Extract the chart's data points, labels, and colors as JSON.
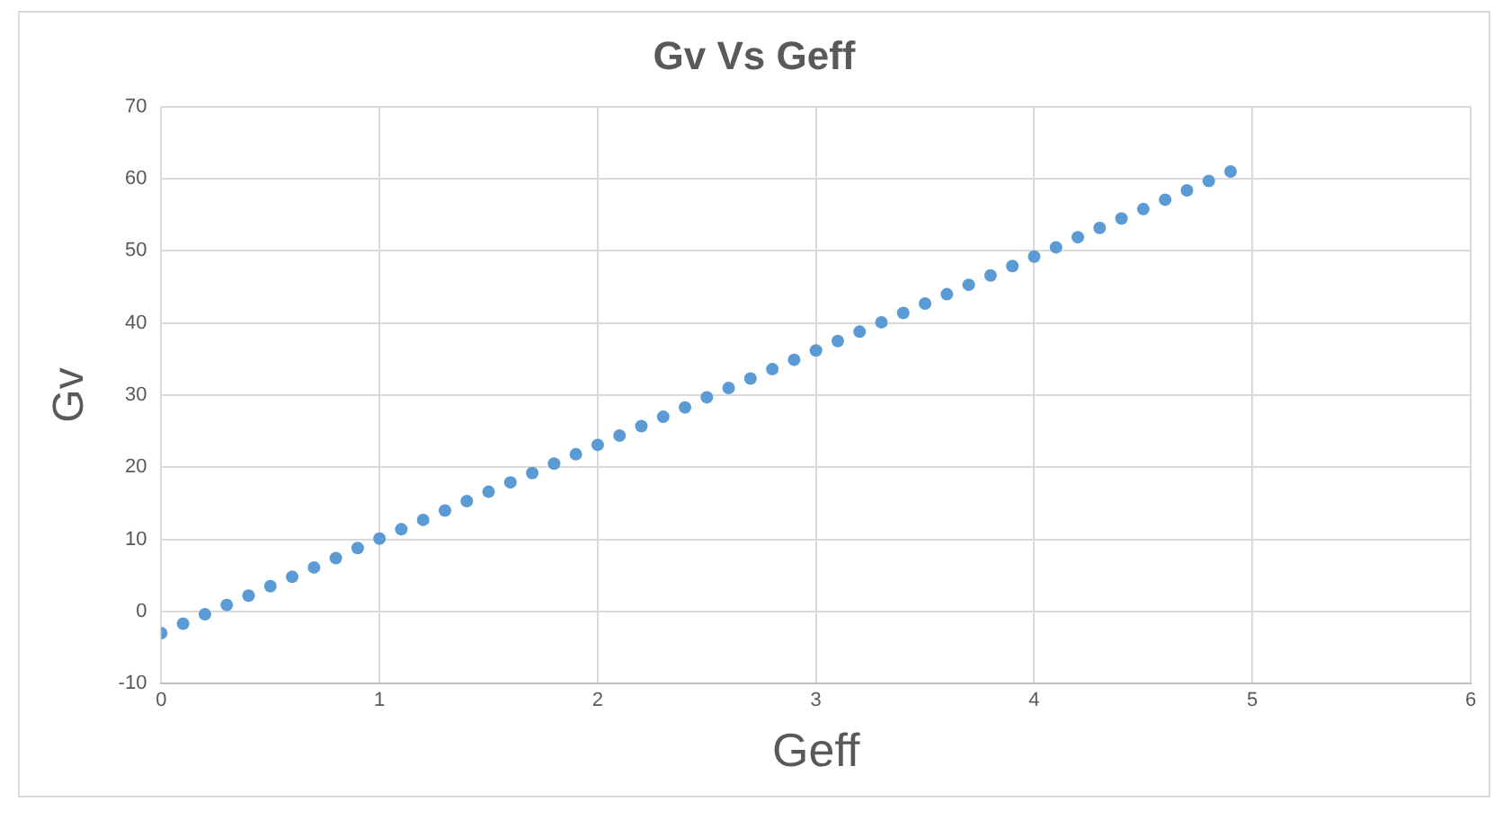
{
  "chart_data": {
    "type": "scatter",
    "title": "Gv Vs Geff",
    "xlabel": "Geff",
    "ylabel": "Gv",
    "x": [
      0,
      0.1,
      0.2,
      0.3,
      0.4,
      0.5,
      0.6,
      0.7,
      0.8,
      0.9,
      1,
      1.1,
      1.2,
      1.3,
      1.4,
      1.5,
      1.6,
      1.7,
      1.8,
      1.9,
      2,
      2.1,
      2.2,
      2.3,
      2.4,
      2.5,
      2.6,
      2.7,
      2.8,
      2.9,
      3,
      3.1,
      3.2,
      3.3,
      3.4,
      3.5,
      3.6,
      3.7,
      3.8,
      3.9,
      4,
      4.1,
      4.2,
      4.3,
      4.4,
      4.5,
      4.6,
      4.7,
      4.8,
      4.9
    ],
    "series": [
      {
        "color": "#5b9bd5",
        "values": [
          -3,
          -1.7,
          -0.4,
          0.9,
          2.2,
          3.5,
          4.8,
          6.1,
          7.4,
          8.8,
          10.1,
          11.4,
          12.7,
          14,
          15.3,
          16.6,
          17.9,
          19.2,
          20.5,
          21.8,
          23.1,
          24.4,
          25.7,
          27,
          28.3,
          29.7,
          31,
          32.3,
          33.6,
          34.9,
          36.2,
          37.5,
          38.8,
          40.1,
          41.4,
          42.7,
          44,
          45.3,
          46.6,
          47.9,
          49.2,
          50.5,
          51.9,
          53.2,
          54.5,
          55.8,
          57.1,
          58.4,
          59.7,
          61
        ]
      }
    ],
    "xlim": [
      0,
      6
    ],
    "xticks": [
      0,
      1,
      2,
      3,
      4,
      5,
      6
    ],
    "ylim": [
      -10,
      70
    ],
    "yticks": [
      -10,
      0,
      10,
      20,
      30,
      40,
      50,
      60,
      70
    ],
    "grid": true,
    "legend": false,
    "marker": "circle"
  }
}
